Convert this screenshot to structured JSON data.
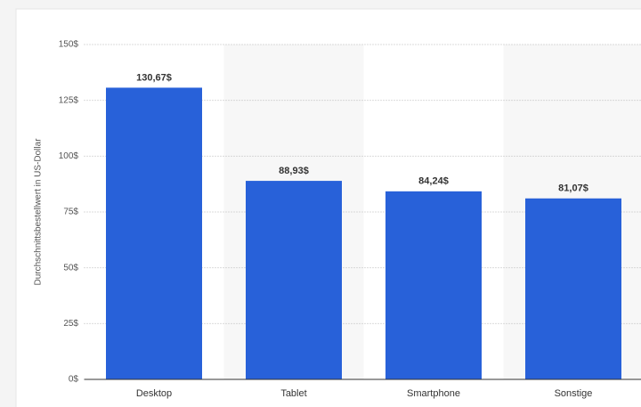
{
  "chart_data": {
    "type": "bar",
    "y_label": "Durchschnittsbestellwert in US-Dollar",
    "categories": [
      "Desktop",
      "Tablet",
      "Smartphone",
      "Sonstige"
    ],
    "values": [
      130.67,
      88.93,
      84.24,
      81.07
    ],
    "value_labels": [
      "130,67$",
      "88,93$",
      "84,24$",
      "81,07$"
    ],
    "color": "#2861d9",
    "ylim": [
      0,
      150
    ],
    "yticks": [
      {
        "value": 0,
        "label": "0$"
      },
      {
        "value": 25,
        "label": "25$"
      },
      {
        "value": 50,
        "label": "50$"
      },
      {
        "value": 75,
        "label": "75$"
      },
      {
        "value": 100,
        "label": "100$"
      },
      {
        "value": 125,
        "label": "125$"
      },
      {
        "value": 150,
        "label": "150$"
      }
    ],
    "grid": true
  }
}
